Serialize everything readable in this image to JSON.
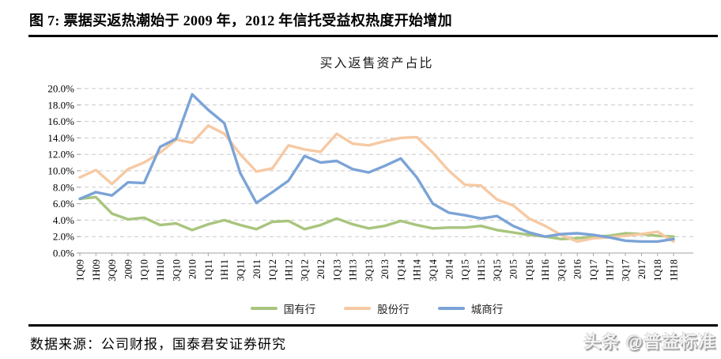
{
  "figure_title": "图 7: 票据买返热潮始于 2009 年，2012 年信托受益权热度开始增加",
  "source_line": "数据来源：公司财报，国泰君安证券研究",
  "watermark": "头条 @普益标准",
  "chart_data": {
    "type": "line",
    "title": "买入返售资产占比",
    "categories": [
      "1Q09",
      "1H09",
      "3Q09",
      "2009",
      "1Q10",
      "1H10",
      "3Q10",
      "2010",
      "1Q11",
      "1H11",
      "3Q11",
      "2011",
      "1Q12",
      "1H12",
      "3Q12",
      "2012",
      "1Q13",
      "1H13",
      "3Q13",
      "2013",
      "1Q14",
      "1H14",
      "3Q14",
      "2014",
      "1Q15",
      "1H15",
      "3Q15",
      "2015",
      "1Q16",
      "1H16",
      "3Q16",
      "2016",
      "1Q17",
      "1H17",
      "3Q17",
      "2017",
      "1Q18",
      "1H18"
    ],
    "series": [
      {
        "name": "国有行",
        "color": "#a8c57e",
        "values": [
          6.6,
          6.8,
          4.8,
          4.1,
          4.3,
          3.4,
          3.6,
          2.8,
          3.5,
          4.0,
          3.4,
          2.9,
          3.8,
          3.9,
          2.9,
          3.4,
          4.2,
          3.5,
          3.0,
          3.3,
          3.9,
          3.4,
          3.0,
          3.1,
          3.1,
          3.3,
          2.8,
          2.5,
          2.2,
          2.0,
          1.7,
          1.8,
          2.0,
          2.1,
          2.4,
          2.3,
          2.1,
          2.0
        ]
      },
      {
        "name": "股份行",
        "color": "#f6c9a3",
        "values": [
          9.2,
          10.1,
          8.4,
          10.2,
          11.0,
          12.2,
          13.8,
          13.4,
          15.5,
          14.5,
          12.0,
          9.9,
          10.3,
          13.1,
          12.6,
          12.3,
          14.5,
          13.3,
          13.1,
          13.6,
          14.0,
          14.1,
          12.2,
          10.0,
          8.3,
          8.2,
          6.5,
          5.8,
          4.2,
          3.3,
          2.2,
          1.4,
          1.8,
          1.9,
          2.1,
          2.3,
          2.6,
          1.4
        ]
      },
      {
        "name": "城商行",
        "color": "#7ba3d6",
        "values": [
          6.6,
          7.4,
          7.0,
          8.6,
          8.5,
          12.9,
          13.9,
          19.3,
          17.4,
          15.8,
          9.7,
          6.1,
          7.4,
          8.8,
          11.8,
          11.0,
          11.2,
          10.2,
          9.8,
          10.6,
          11.5,
          9.2,
          6.0,
          4.9,
          4.6,
          4.2,
          4.5,
          3.3,
          2.5,
          2.0,
          2.3,
          2.4,
          2.2,
          1.9,
          1.5,
          1.4,
          1.4,
          1.7
        ]
      }
    ],
    "ylim": [
      0,
      20
    ],
    "ytick_step": 2,
    "ytick_labels": [
      "0.0%",
      "2.0%",
      "4.0%",
      "6.0%",
      "8.0%",
      "10.0%",
      "12.0%",
      "14.0%",
      "16.0%",
      "18.0%",
      "20.0%"
    ],
    "grid": "horizontal-dashed",
    "legend_position": "bottom"
  }
}
